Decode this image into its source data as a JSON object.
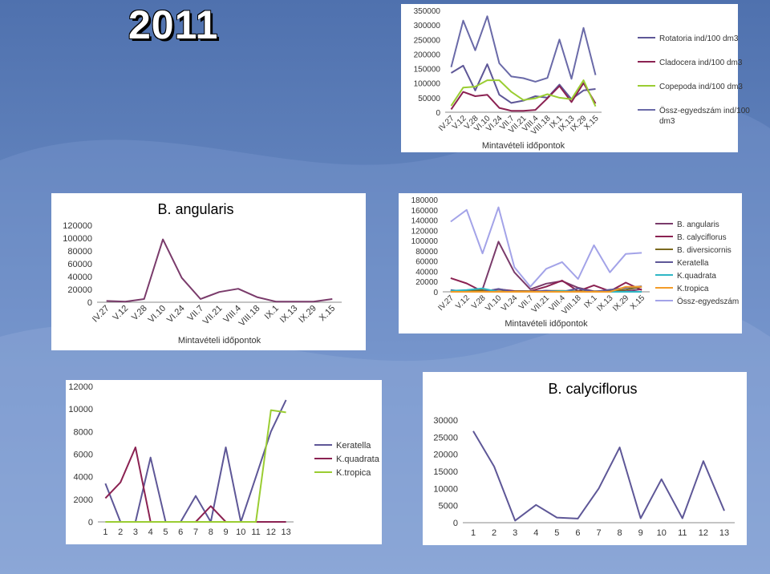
{
  "header": {
    "year": "2011"
  },
  "colors": {
    "rotatoria": "#5e5797",
    "cladocera": "#8b2252",
    "copepoda": "#9acd32",
    "ossz": "#6a6aa8",
    "angularis": "#7a3b6b",
    "calyciflorus": "#6b3b83",
    "diversicornis": "#7b6a1f",
    "keratella": "#5e5797",
    "quadrata": "#2fb7c5",
    "tropica": "#f39c28",
    "osszeg": "#a3a3e8"
  },
  "chart_data": [
    {
      "id": "chart1",
      "type": "line",
      "categories": [
        "IV.27",
        "V.12",
        "V.28",
        "VI.10",
        "VI.24",
        "VII.7",
        "VII.21",
        "VIII.4",
        "VIII.18",
        "IX.1",
        "IX.13",
        "IX.29",
        "X.15"
      ],
      "xlabel": "Mintavételi időpontok",
      "ylabel": "",
      "ylim": [
        0,
        350000
      ],
      "yticks": [
        0,
        50000,
        100000,
        150000,
        200000,
        250000,
        300000,
        350000
      ],
      "legend_position": "right",
      "series": [
        {
          "name": "Rotatoria ind/100 dm3",
          "color": "#5e5797",
          "values": [
            135000,
            160000,
            75000,
            165000,
            60000,
            32000,
            40000,
            55000,
            50000,
            95000,
            45000,
            75000,
            80000
          ]
        },
        {
          "name": "Cladocera ind/100 dm3",
          "color": "#8b2252",
          "values": [
            10000,
            70000,
            55000,
            60000,
            15000,
            5000,
            5000,
            8000,
            48000,
            90000,
            35000,
            100000,
            30000
          ]
        },
        {
          "name": "Copepoda ind/100 dm3",
          "color": "#9acd32",
          "values": [
            22000,
            85000,
            88000,
            110000,
            110000,
            70000,
            42000,
            48000,
            62000,
            50000,
            45000,
            110000,
            20000
          ]
        },
        {
          "name": "Össz-egyedszám ind/100 dm3",
          "color": "#6a6aa8",
          "values": [
            155000,
            315000,
            213000,
            330000,
            168000,
            123000,
            117000,
            105000,
            118000,
            250000,
            115000,
            290000,
            128000
          ]
        }
      ]
    },
    {
      "id": "chart2",
      "type": "line",
      "title": "B. angularis",
      "categories": [
        "IV.27",
        "V.12",
        "V.28",
        "VI.10",
        "VI.24",
        "VII.7",
        "VII.21",
        "VIII.4",
        "VIII.18",
        "IX.1",
        "IX.13",
        "IX.29",
        "X.15"
      ],
      "xlabel": "Mintavételi időpontok",
      "ylim": [
        0,
        120000
      ],
      "yticks": [
        0,
        20000,
        40000,
        60000,
        80000,
        100000,
        120000
      ],
      "series": [
        {
          "name": "B. angularis",
          "color": "#7a3b6b",
          "values": [
            2000,
            1000,
            5000,
            98000,
            38000,
            5000,
            16000,
            21000,
            8000,
            1000,
            1000,
            1000,
            5000
          ]
        }
      ]
    },
    {
      "id": "chart3",
      "type": "line",
      "categories": [
        "IV.27",
        "V.12",
        "V.28",
        "VI.10",
        "VI.24",
        "VII.7",
        "VII.21",
        "VIII.4",
        "VIII.18",
        "IX.1",
        "IX.13",
        "IX.29",
        "X.15"
      ],
      "xlabel": "Mintavételi időpontok",
      "ylim": [
        0,
        180000
      ],
      "yticks": [
        0,
        20000,
        40000,
        60000,
        80000,
        100000,
        120000,
        140000,
        160000,
        180000
      ],
      "legend_position": "right",
      "series": [
        {
          "name": "B. angularis",
          "color": "#7a3b6b",
          "values": [
            2000,
            1000,
            5000,
            98000,
            38000,
            5000,
            16000,
            21000,
            8000,
            1000,
            1000,
            1000,
            5000
          ]
        },
        {
          "name": "B. calyciflorus",
          "color": "#8b2252",
          "values": [
            26800,
            16400,
            600,
            5200,
            1500,
            1200,
            10000,
            22000,
            1300,
            12700,
            1300,
            18000,
            3500
          ]
        },
        {
          "name": "B. diversicornis",
          "color": "#7b6a1f",
          "values": [
            1000,
            2000,
            3000,
            1000,
            1000,
            1000,
            2000,
            2000,
            1000,
            1000,
            2000,
            4000,
            10000
          ]
        },
        {
          "name": "Keratella",
          "color": "#5e5797",
          "values": [
            3400,
            0,
            0,
            5700,
            0,
            0,
            2300,
            0,
            6600,
            0,
            4000,
            8000,
            10800
          ]
        },
        {
          "name": "K.quadrata",
          "color": "#2fb7c5",
          "values": [
            2100,
            3500,
            6600,
            0,
            0,
            0,
            0,
            1400,
            0,
            0,
            0,
            0,
            0
          ]
        },
        {
          "name": "K.tropica",
          "color": "#f39c28",
          "values": [
            0,
            0,
            0,
            0,
            0,
            0,
            0,
            0,
            0,
            0,
            0,
            9900,
            9700
          ]
        },
        {
          "name": "Össz-egyedszám",
          "color": "#a3a3e8",
          "values": [
            137000,
            160000,
            75000,
            165000,
            48000,
            10000,
            45000,
            58000,
            25000,
            91000,
            38000,
            74000,
            76000
          ]
        }
      ]
    },
    {
      "id": "chart4",
      "type": "line",
      "categories": [
        "1",
        "2",
        "3",
        "4",
        "5",
        "6",
        "7",
        "8",
        "9",
        "10",
        "11",
        "12",
        "13"
      ],
      "ylim": [
        0,
        12000
      ],
      "yticks": [
        0,
        2000,
        4000,
        6000,
        8000,
        10000,
        12000
      ],
      "legend_position": "right",
      "series": [
        {
          "name": "Keratella",
          "color": "#5e5797",
          "values": [
            3400,
            0,
            0,
            5700,
            0,
            0,
            2300,
            0,
            6600,
            0,
            4000,
            8000,
            10800
          ]
        },
        {
          "name": "K.quadrata",
          "color": "#8b2252",
          "values": [
            2100,
            3500,
            6600,
            0,
            0,
            0,
            0,
            1400,
            0,
            0,
            0,
            0,
            0
          ]
        },
        {
          "name": "K.tropica",
          "color": "#9acd32",
          "values": [
            0,
            0,
            0,
            0,
            0,
            0,
            0,
            0,
            0,
            0,
            0,
            9900,
            9700
          ]
        }
      ]
    },
    {
      "id": "chart5",
      "type": "line",
      "title": "B. calyciflorus",
      "categories": [
        "1",
        "2",
        "3",
        "4",
        "5",
        "6",
        "7",
        "8",
        "9",
        "10",
        "11",
        "12",
        "13"
      ],
      "ylim": [
        0,
        30000
      ],
      "yticks": [
        0,
        5000,
        10000,
        15000,
        20000,
        25000,
        30000
      ],
      "series": [
        {
          "name": "B. calyciflorus",
          "color": "#5e5797",
          "values": [
            26800,
            16400,
            600,
            5200,
            1500,
            1200,
            10000,
            22000,
            1300,
            12700,
            1300,
            18000,
            3500
          ]
        }
      ]
    }
  ]
}
